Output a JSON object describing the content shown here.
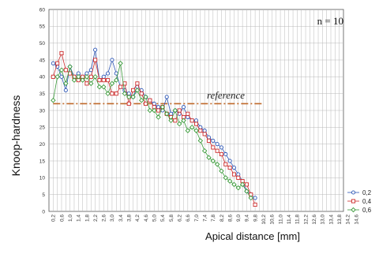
{
  "chart_data": {
    "type": "line",
    "xlabel": "Apical distance [mm]",
    "ylabel": "Knoop-hardness",
    "annotation": "n = 10",
    "reference_label": "reference",
    "reference_value": 32,
    "reference_color": "#c0692a",
    "ylim": [
      0,
      60
    ],
    "yticks": [
      "0",
      "5",
      "10",
      "15",
      "20",
      "25",
      "30",
      "35",
      "40",
      "45",
      "50",
      "55",
      "60"
    ],
    "xticks": [
      "0,2",
      "0,6",
      "1,0",
      "1,4",
      "1,8",
      "2,2",
      "2,6",
      "3,0",
      "3,4",
      "3,8",
      "4,2",
      "4,6",
      "5,0",
      "5,4",
      "5,8",
      "6,2",
      "6,6",
      "7,0",
      "7,4",
      "7,8",
      "8,2",
      "8,6",
      "9,0",
      "9,4",
      "9,8",
      "10,2",
      "10,6",
      "11,0",
      "11,4",
      "11,8",
      "12,2",
      "12,6",
      "13,0",
      "13,4",
      "13,8",
      "14,2",
      "14,6"
    ],
    "x": [
      0.2,
      0.4,
      0.6,
      0.8,
      1.0,
      1.2,
      1.4,
      1.6,
      1.8,
      2.0,
      2.2,
      2.4,
      2.6,
      2.8,
      3.0,
      3.2,
      3.4,
      3.6,
      3.8,
      4.0,
      4.2,
      4.4,
      4.6,
      4.8,
      5.0,
      5.2,
      5.4,
      5.6,
      5.8,
      6.0,
      6.2,
      6.4,
      6.6,
      6.8,
      7.0,
      7.2,
      7.4,
      7.6,
      7.8,
      8.0,
      8.2,
      8.4,
      8.6,
      8.8,
      9.0,
      9.2,
      9.4,
      9.6,
      9.8,
      10.0
    ],
    "series": [
      {
        "name": "0,2",
        "color": "#2b55b5",
        "marker": "circle",
        "values": [
          44,
          43,
          40,
          36,
          43,
          40,
          41,
          40,
          41,
          42,
          48,
          39,
          40,
          41,
          45,
          41,
          37,
          36,
          35,
          34,
          37,
          36,
          34,
          33,
          32,
          31,
          30,
          34,
          29,
          30,
          29,
          31,
          28,
          27,
          27,
          25,
          24,
          22,
          21,
          20,
          19,
          17,
          15,
          13,
          11,
          9,
          6,
          5,
          4,
          null
        ]
      },
      {
        "name": "0,4",
        "color": "#cc2b2b",
        "marker": "square",
        "values": [
          40,
          44,
          47,
          42,
          41,
          40,
          39,
          40,
          38,
          40,
          45,
          39,
          39,
          39,
          35,
          35,
          37,
          38,
          32,
          36,
          38,
          35,
          32,
          33,
          31,
          30,
          31,
          29,
          28,
          27,
          30,
          28,
          29,
          27,
          26,
          24,
          23,
          21,
          19,
          18,
          17,
          14,
          13,
          11,
          10,
          9,
          8,
          5,
          2,
          null
        ]
      },
      {
        "name": "0,6",
        "color": "#3a9a3a",
        "marker": "diamond",
        "values": [
          33,
          40,
          42,
          38,
          43,
          39,
          40,
          39,
          40,
          38,
          40,
          37,
          37,
          35,
          38,
          39,
          44,
          35,
          34,
          34,
          36,
          33,
          34,
          30,
          30,
          28,
          31,
          29,
          27,
          30,
          26,
          27,
          24,
          25,
          24,
          21,
          18,
          16,
          15,
          14,
          12,
          10,
          9,
          8,
          7,
          8,
          6,
          4,
          null,
          null
        ]
      }
    ]
  }
}
